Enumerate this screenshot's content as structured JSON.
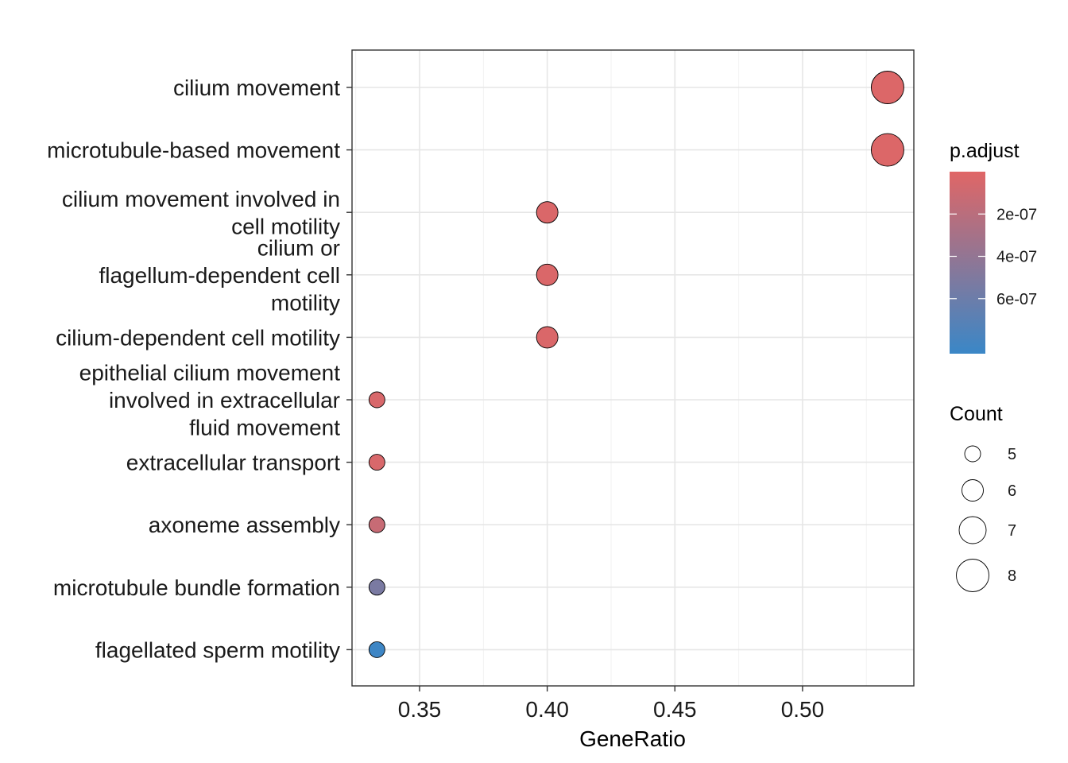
{
  "chart_data": {
    "type": "scatter",
    "xlabel": "GeneRatio",
    "ylabel": "",
    "xlim": [
      0.325,
      0.545
    ],
    "x_ticks": [
      "0.35",
      "0.40",
      "0.45",
      "0.50"
    ],
    "x_tick_values": [
      0.35,
      0.4,
      0.45,
      0.5
    ],
    "grid": true,
    "categories": [
      "cilium movement",
      "microtubule-based movement",
      "cilium movement involved in cell motility",
      "cilium or flagellum-dependent cell motility",
      "cilium-dependent cell motility",
      "epithelial cilium movement involved in extracellular fluid movement",
      "extracellular transport",
      "axoneme assembly",
      "microtubule bundle formation",
      "flagellated sperm motility"
    ],
    "category_lines": [
      [
        "cilium movement"
      ],
      [
        "microtubule-based movement"
      ],
      [
        "cilium movement involved in",
        "cell motility"
      ],
      [
        "cilium or",
        "flagellum-dependent cell",
        "motility"
      ],
      [
        "cilium-dependent cell motility"
      ],
      [
        "epithelial cilium movement",
        "involved in extracellular",
        "fluid movement"
      ],
      [
        "extracellular transport"
      ],
      [
        "axoneme assembly"
      ],
      [
        "microtubule bundle formation"
      ],
      [
        "flagellated sperm motility"
      ]
    ],
    "points": [
      {
        "term": "cilium movement",
        "gene_ratio": 0.5333,
        "count": 8,
        "p_adjust": 2e-08
      },
      {
        "term": "microtubule-based movement",
        "gene_ratio": 0.5333,
        "count": 8,
        "p_adjust": 2e-08
      },
      {
        "term": "cilium movement involved in cell motility",
        "gene_ratio": 0.4,
        "count": 6,
        "p_adjust": 3e-08
      },
      {
        "term": "cilium or flagellum-dependent cell motility",
        "gene_ratio": 0.4,
        "count": 6,
        "p_adjust": 3e-08
      },
      {
        "term": "cilium-dependent cell motility",
        "gene_ratio": 0.4,
        "count": 6,
        "p_adjust": 3e-08
      },
      {
        "term": "epithelial cilium movement involved in extracellular fluid movement",
        "gene_ratio": 0.3333,
        "count": 5,
        "p_adjust": 4e-08
      },
      {
        "term": "extracellular transport",
        "gene_ratio": 0.3333,
        "count": 5,
        "p_adjust": 4e-08
      },
      {
        "term": "axoneme assembly",
        "gene_ratio": 0.3333,
        "count": 5,
        "p_adjust": 1.3e-07
      },
      {
        "term": "microtubule bundle formation",
        "gene_ratio": 0.3333,
        "count": 5,
        "p_adjust": 5.3e-07
      },
      {
        "term": "flagellated sperm motility",
        "gene_ratio": 0.3333,
        "count": 5,
        "p_adjust": 8.4e-07
      }
    ],
    "color_legend": {
      "title": "p.adjust",
      "low_color": "#E06666",
      "high_color": "#3A87C7",
      "range": [
        0.0,
        8.6e-07
      ],
      "tick_labels": [
        "2e-07",
        "4e-07",
        "6e-07"
      ],
      "tick_values": [
        2e-07,
        4e-07,
        6e-07
      ]
    },
    "size_legend": {
      "title": "Count",
      "values": [
        5,
        6,
        7,
        8
      ],
      "labels": [
        "5",
        "6",
        "7",
        "8"
      ]
    }
  }
}
